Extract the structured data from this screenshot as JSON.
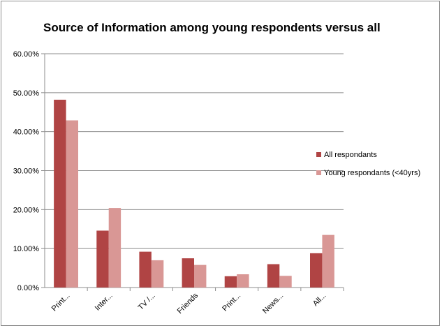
{
  "chart_data": {
    "type": "bar",
    "title": "Source of Information among young respondents  versus all",
    "categories": [
      "Print...",
      "Inter...",
      "TV /...",
      "Friends",
      "Print...",
      "News...",
      "All..."
    ],
    "series": [
      {
        "name": "All respondants",
        "color": "#b04444",
        "values": [
          48.2,
          14.6,
          9.2,
          7.5,
          2.9,
          6.0,
          8.8
        ]
      },
      {
        "name": "Young respondants (<40yrs)",
        "color": "#d99795",
        "values": [
          42.9,
          20.4,
          7.0,
          5.8,
          3.4,
          3.0,
          13.5
        ]
      }
    ],
    "ylim": [
      0,
      60
    ],
    "yticks": [
      "0.00%",
      "10.00%",
      "20.00%",
      "30.00%",
      "40.00%",
      "50.00%",
      "60.00%"
    ],
    "grid": true,
    "legend_position": "right",
    "xlabel": "",
    "ylabel": ""
  }
}
